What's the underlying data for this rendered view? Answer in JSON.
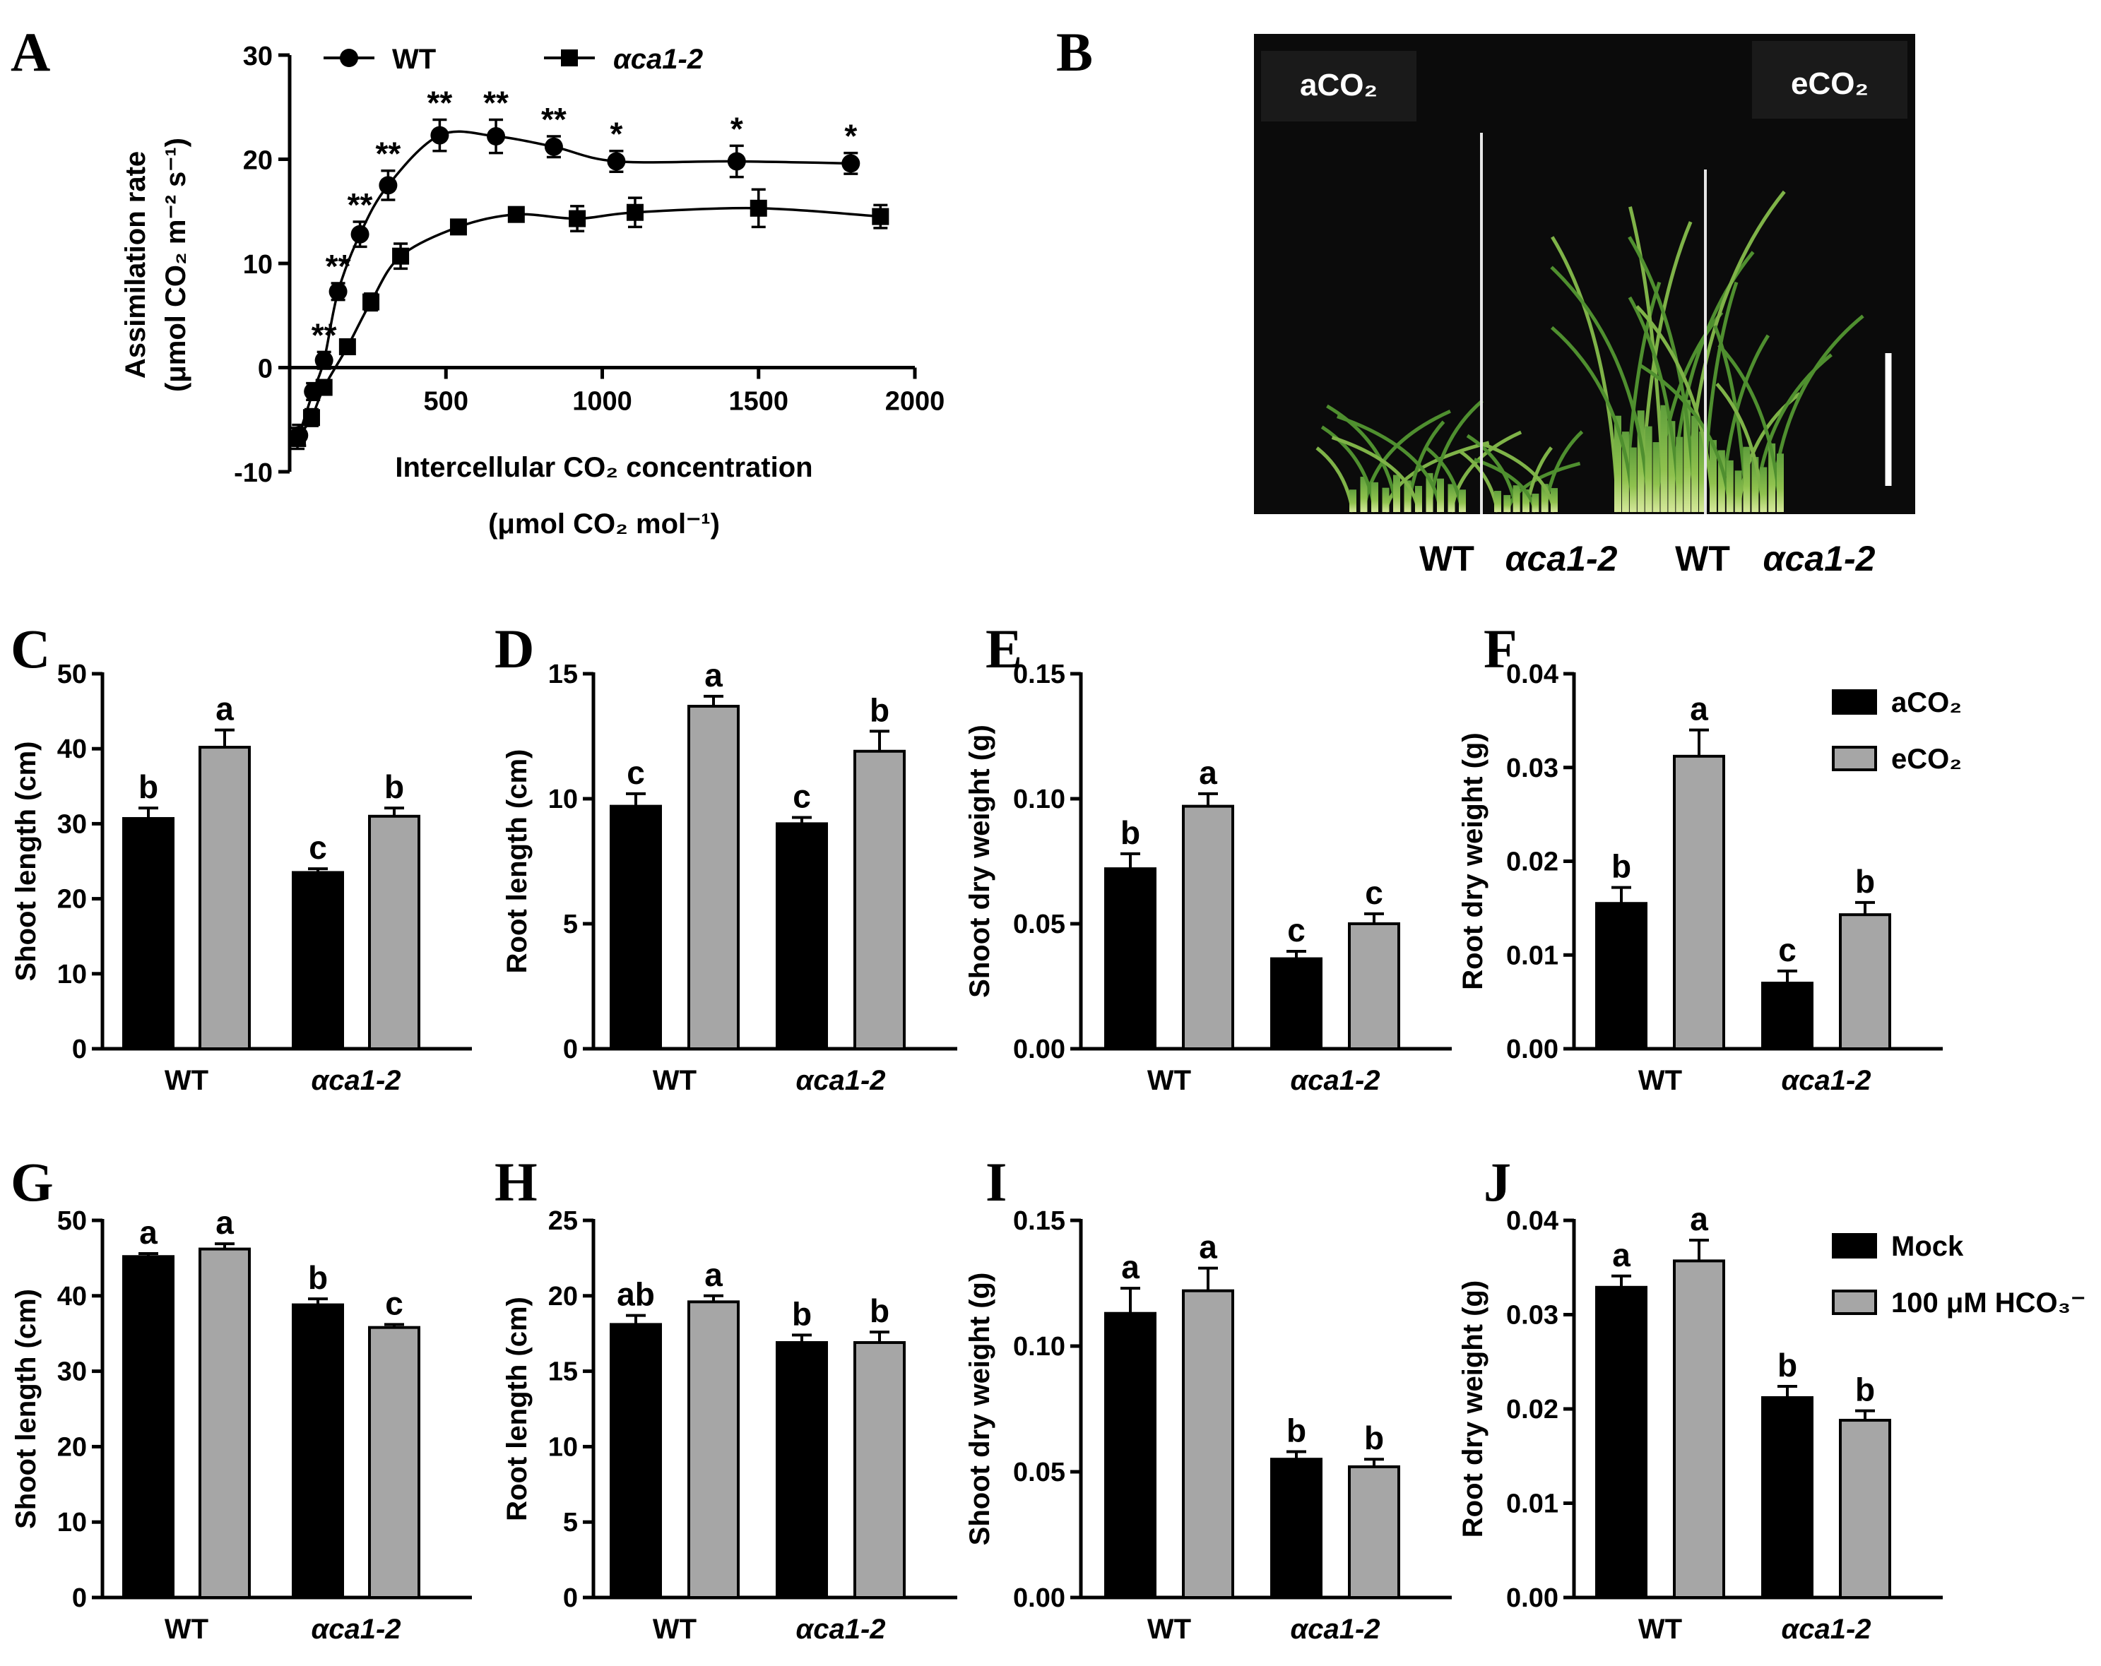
{
  "colors": {
    "acco2": "#000000",
    "eco2": "#a6a6a6",
    "mock": "#000000",
    "hco3": "#a6a6a6",
    "photo_bg": "#0b0b0b"
  },
  "chart_data": [
    {
      "panel": "A",
      "type": "line",
      "xlabel_line1": "Intercellular CO₂ concentration",
      "xlabel_line2": "(μmol CO₂ mol⁻¹)",
      "ylabel_line1": "Assimilation rate",
      "ylabel_line2": "(μmol CO₂ m⁻² s⁻¹)",
      "xlim": [
        0,
        2000
      ],
      "ylim": [
        -10,
        30
      ],
      "xticks": [
        "500",
        "1000",
        "1500",
        "2000"
      ],
      "yticks": [
        "-10",
        "0",
        "10",
        "20",
        "30"
      ],
      "legend": [
        "WT",
        "αca1-2"
      ],
      "series": [
        {
          "name": "WT",
          "marker": "circle",
          "x": [
            30,
            75,
            110,
            155,
            225,
            315,
            480,
            660,
            845,
            1045,
            1430,
            1795
          ],
          "y": [
            -6.5,
            -2.3,
            0.7,
            7.3,
            12.8,
            17.5,
            22.3,
            22.2,
            21.2,
            19.8,
            19.8,
            19.6
          ],
          "err": [
            1.0,
            0.8,
            0.8,
            0.8,
            1.2,
            1.4,
            1.5,
            1.6,
            1.0,
            1.0,
            1.5,
            1.0
          ],
          "sig": [
            "",
            "",
            "**",
            "**",
            "**",
            "**",
            "**",
            "**",
            "**",
            "*",
            "*",
            "*"
          ]
        },
        {
          "name": "αca1-2",
          "marker": "square",
          "x": [
            25,
            70,
            110,
            185,
            260,
            355,
            540,
            725,
            920,
            1105,
            1500,
            1890
          ],
          "y": [
            -6.8,
            -4.8,
            -1.9,
            2.0,
            6.3,
            10.7,
            13.5,
            14.7,
            14.3,
            14.9,
            15.3,
            14.5
          ],
          "err": [
            1.0,
            0.8,
            0.5,
            0.6,
            0.8,
            1.2,
            0.6,
            0.6,
            1.2,
            1.4,
            1.8,
            1.1
          ]
        }
      ]
    },
    {
      "panel": "C",
      "type": "bar",
      "ylabel": "Shoot length (cm)",
      "ylim": [
        0,
        50
      ],
      "yticks": [
        "0",
        "10",
        "20",
        "30",
        "40",
        "50"
      ],
      "categories": [
        "WT",
        "αca1-2"
      ],
      "series": [
        {
          "name": "aCO₂",
          "values": [
            30.7,
            23.5
          ],
          "err": [
            1.4,
            0.5
          ],
          "letters": [
            "b",
            "c"
          ]
        },
        {
          "name": "eCO₂",
          "values": [
            40.2,
            31.0
          ],
          "err": [
            2.3,
            1.1
          ],
          "letters": [
            "a",
            "b"
          ]
        }
      ]
    },
    {
      "panel": "D",
      "type": "bar",
      "ylabel": "Root length (cm)",
      "ylim": [
        0,
        15
      ],
      "yticks": [
        "0",
        "5",
        "10",
        "15"
      ],
      "categories": [
        "WT",
        "αca1-2"
      ],
      "series": [
        {
          "name": "aCO₂",
          "values": [
            9.7,
            9.0
          ],
          "err": [
            0.5,
            0.25
          ],
          "letters": [
            "c",
            "c"
          ]
        },
        {
          "name": "eCO₂",
          "values": [
            13.7,
            11.9
          ],
          "err": [
            0.4,
            0.8
          ],
          "letters": [
            "a",
            "b"
          ]
        }
      ]
    },
    {
      "panel": "E",
      "type": "bar",
      "ylabel": "Shoot dry weight (g)",
      "ylim": [
        0,
        0.15
      ],
      "yticks": [
        "0.00",
        "0.05",
        "0.10",
        "0.15"
      ],
      "categories": [
        "WT",
        "αca1-2"
      ],
      "series": [
        {
          "name": "aCO₂",
          "values": [
            0.072,
            0.036
          ],
          "err": [
            0.006,
            0.003
          ],
          "letters": [
            "b",
            "c"
          ]
        },
        {
          "name": "eCO₂",
          "values": [
            0.097,
            0.05
          ],
          "err": [
            0.005,
            0.004
          ],
          "letters": [
            "a",
            "c"
          ]
        }
      ]
    },
    {
      "panel": "F",
      "type": "bar",
      "ylabel": "Root dry weight (g)",
      "ylim": [
        0,
        0.04
      ],
      "yticks": [
        "0.00",
        "0.01",
        "0.02",
        "0.03",
        "0.04"
      ],
      "categories": [
        "WT",
        "αca1-2"
      ],
      "legend": [
        "aCO₂",
        "eCO₂"
      ],
      "series": [
        {
          "name": "aCO₂",
          "values": [
            0.0155,
            0.007
          ],
          "err": [
            0.0017,
            0.0013
          ],
          "letters": [
            "b",
            "c"
          ]
        },
        {
          "name": "eCO₂",
          "values": [
            0.0312,
            0.0143
          ],
          "err": [
            0.0028,
            0.0013
          ],
          "letters": [
            "a",
            "b"
          ]
        }
      ]
    },
    {
      "panel": "G",
      "type": "bar",
      "ylabel": "Shoot length (cm)",
      "ylim": [
        0,
        50
      ],
      "yticks": [
        "0",
        "10",
        "20",
        "30",
        "40",
        "50"
      ],
      "categories": [
        "WT",
        "αca1-2"
      ],
      "series": [
        {
          "name": "Mock",
          "values": [
            45.2,
            38.8
          ],
          "err": [
            0.4,
            0.8
          ],
          "letters": [
            "a",
            "b"
          ]
        },
        {
          "name": "100 μM HCO₃⁻",
          "values": [
            46.2,
            35.8
          ],
          "err": [
            0.7,
            0.4
          ],
          "letters": [
            "a",
            "c"
          ]
        }
      ]
    },
    {
      "panel": "H",
      "type": "bar",
      "ylabel": "Root length (cm)",
      "ylim": [
        0,
        25
      ],
      "yticks": [
        "0",
        "5",
        "10",
        "15",
        "20",
        "25"
      ],
      "categories": [
        "WT",
        "αca1-2"
      ],
      "series": [
        {
          "name": "Mock",
          "values": [
            18.1,
            16.9
          ],
          "err": [
            0.6,
            0.5
          ],
          "letters": [
            "ab",
            "b"
          ]
        },
        {
          "name": "100 μM HCO₃⁻",
          "values": [
            19.6,
            16.9
          ],
          "err": [
            0.4,
            0.7
          ],
          "letters": [
            "a",
            "b"
          ]
        }
      ]
    },
    {
      "panel": "I",
      "type": "bar",
      "ylabel": "Shoot dry weight (g)",
      "ylim": [
        0,
        0.15
      ],
      "yticks": [
        "0.00",
        "0.05",
        "0.10",
        "0.15"
      ],
      "categories": [
        "WT",
        "αca1-2"
      ],
      "series": [
        {
          "name": "Mock",
          "values": [
            0.113,
            0.055
          ],
          "err": [
            0.01,
            0.003
          ],
          "letters": [
            "a",
            "b"
          ]
        },
        {
          "name": "100 μM HCO₃⁻",
          "values": [
            0.122,
            0.052
          ],
          "err": [
            0.009,
            0.003
          ],
          "letters": [
            "a",
            "b"
          ]
        }
      ]
    },
    {
      "panel": "J",
      "type": "bar",
      "ylabel": "Root dry weight (g)",
      "ylim": [
        0,
        0.04
      ],
      "yticks": [
        "0.00",
        "0.01",
        "0.02",
        "0.03",
        "0.04"
      ],
      "categories": [
        "WT",
        "αca1-2"
      ],
      "legend": [
        "Mock",
        "100 μM HCO₃⁻"
      ],
      "series": [
        {
          "name": "Mock",
          "values": [
            0.0329,
            0.0212
          ],
          "err": [
            0.0012,
            0.0012
          ],
          "letters": [
            "a",
            "b"
          ]
        },
        {
          "name": "100 μM HCO₃⁻",
          "values": [
            0.0357,
            0.0188
          ],
          "err": [
            0.0022,
            0.001
          ],
          "letters": [
            "a",
            "b"
          ]
        }
      ]
    }
  ],
  "photo": {
    "panel": "B",
    "left_label": "aCO₂",
    "right_label": "eCO₂",
    "captions": [
      "WT",
      "αca1-2",
      "WT",
      "αca1-2"
    ]
  }
}
